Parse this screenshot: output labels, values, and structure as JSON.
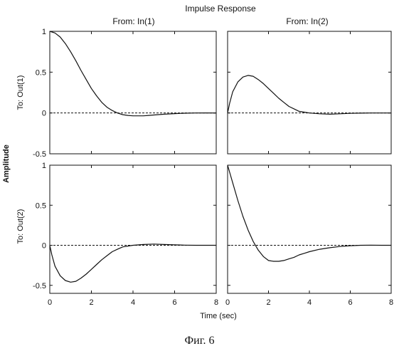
{
  "chart_data": {
    "type": "line",
    "title": "Impulse Response",
    "xlabel": "Time (sec)",
    "ylabel": "Amplitude",
    "caption": "Фиг. 6",
    "column_titles": [
      "From: In(1)",
      "From: In(2)"
    ],
    "row_titles": [
      "To: Out(1)",
      "To: Out(2)"
    ],
    "xlim": [
      0,
      8
    ],
    "x_ticks": [
      0,
      2,
      4,
      6,
      8
    ],
    "x_tick_labels": [
      "0",
      "2",
      "4",
      "6",
      "8"
    ],
    "grid": false,
    "reference_line": {
      "y": 0,
      "style": "dashed"
    },
    "line_color": "#111111",
    "panels": [
      {
        "row": 0,
        "col": 0,
        "ylim": [
          -0.5,
          1
        ],
        "y_ticks": [
          -0.5,
          0,
          0.5,
          1
        ],
        "y_tick_labels": [
          "-0.5",
          "0",
          "0.5",
          "1"
        ],
        "x": [
          0,
          0.25,
          0.5,
          0.75,
          1,
          1.25,
          1.5,
          1.75,
          2,
          2.25,
          2.5,
          2.75,
          3,
          3.25,
          3.5,
          3.75,
          4,
          4.25,
          4.5,
          4.75,
          5,
          5.5,
          6,
          6.5,
          7,
          7.5,
          8
        ],
        "y": [
          1,
          0.98,
          0.93,
          0.85,
          0.75,
          0.64,
          0.52,
          0.41,
          0.3,
          0.21,
          0.13,
          0.07,
          0.03,
          0.0,
          -0.02,
          -0.03,
          -0.035,
          -0.035,
          -0.035,
          -0.03,
          -0.025,
          -0.015,
          -0.008,
          -0.003,
          0.0,
          0.001,
          0.0
        ]
      },
      {
        "row": 0,
        "col": 1,
        "ylim": [
          -0.5,
          1
        ],
        "y_ticks": [
          -0.5,
          0,
          0.5,
          1
        ],
        "y_tick_labels": [],
        "x": [
          0,
          0.1,
          0.25,
          0.5,
          0.75,
          1,
          1.25,
          1.5,
          1.75,
          2,
          2.25,
          2.5,
          2.75,
          3,
          3.25,
          3.5,
          3.75,
          4,
          4.5,
          5,
          5.5,
          6,
          6.5,
          7,
          8
        ],
        "y": [
          0,
          0.12,
          0.26,
          0.38,
          0.44,
          0.46,
          0.45,
          0.41,
          0.36,
          0.3,
          0.24,
          0.18,
          0.13,
          0.08,
          0.05,
          0.02,
          0.01,
          0.0,
          -0.01,
          -0.015,
          -0.01,
          -0.005,
          -0.002,
          0.0,
          0.0
        ]
      },
      {
        "row": 1,
        "col": 0,
        "ylim": [
          -0.6,
          1
        ],
        "y_ticks": [
          -0.5,
          0,
          0.5,
          1
        ],
        "y_tick_labels": [
          "-0.5",
          "0",
          "0.5",
          "1"
        ],
        "x": [
          0,
          0.1,
          0.25,
          0.5,
          0.75,
          1,
          1.25,
          1.5,
          1.75,
          2,
          2.25,
          2.5,
          2.75,
          3,
          3.25,
          3.5,
          3.75,
          4,
          4.5,
          5,
          5.5,
          6,
          6.5,
          7,
          8
        ],
        "y": [
          0,
          -0.12,
          -0.26,
          -0.38,
          -0.44,
          -0.46,
          -0.45,
          -0.41,
          -0.36,
          -0.3,
          -0.24,
          -0.18,
          -0.13,
          -0.08,
          -0.05,
          -0.02,
          -0.01,
          0.0,
          0.01,
          0.015,
          0.01,
          0.005,
          0.002,
          0.0,
          0.0
        ]
      },
      {
        "row": 1,
        "col": 1,
        "ylim": [
          -0.6,
          1
        ],
        "y_ticks": [
          -0.5,
          0,
          0.5,
          1
        ],
        "y_tick_labels": [],
        "x": [
          0,
          0.25,
          0.5,
          0.75,
          1,
          1.25,
          1.5,
          1.75,
          2,
          2.25,
          2.5,
          2.75,
          3,
          3.25,
          3.5,
          3.75,
          4,
          4.5,
          5,
          5.5,
          6,
          6.5,
          7,
          7.5,
          8
        ],
        "y": [
          1,
          0.78,
          0.56,
          0.36,
          0.19,
          0.05,
          -0.06,
          -0.14,
          -0.19,
          -0.2,
          -0.2,
          -0.19,
          -0.17,
          -0.15,
          -0.12,
          -0.1,
          -0.08,
          -0.05,
          -0.03,
          -0.015,
          -0.005,
          0.0,
          0.002,
          0.0,
          0.0
        ]
      }
    ]
  }
}
